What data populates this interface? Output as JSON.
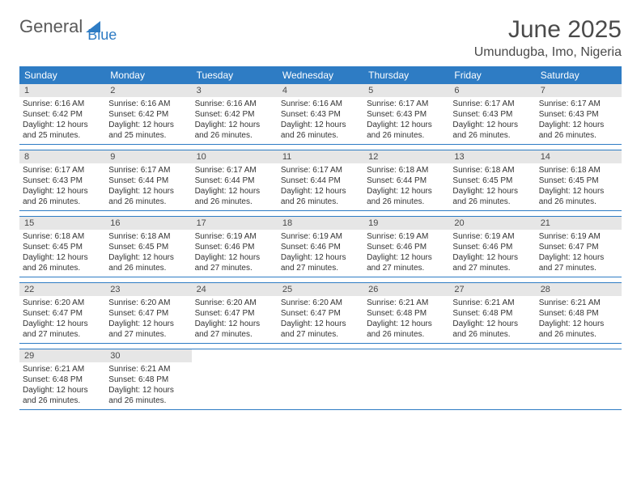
{
  "logo": {
    "t1": "General",
    "t2": "Blue"
  },
  "title": "June 2025",
  "location": "Umundugba, Imo, Nigeria",
  "weekdays": [
    "Sunday",
    "Monday",
    "Tuesday",
    "Wednesday",
    "Thursday",
    "Friday",
    "Saturday"
  ],
  "colors": {
    "header_bg": "#2e7cc4",
    "header_fg": "#ffffff",
    "daynum_bg": "#e6e6e6",
    "rule": "#2e7cc4",
    "text": "#333333",
    "logo_gray": "#5a5a5a",
    "logo_blue": "#2e7cc4"
  },
  "weeks": [
    [
      {
        "n": "1",
        "sr": "6:16 AM",
        "ss": "6:42 PM",
        "dl": "12 hours and 25 minutes."
      },
      {
        "n": "2",
        "sr": "6:16 AM",
        "ss": "6:42 PM",
        "dl": "12 hours and 25 minutes."
      },
      {
        "n": "3",
        "sr": "6:16 AM",
        "ss": "6:42 PM",
        "dl": "12 hours and 26 minutes."
      },
      {
        "n": "4",
        "sr": "6:16 AM",
        "ss": "6:43 PM",
        "dl": "12 hours and 26 minutes."
      },
      {
        "n": "5",
        "sr": "6:17 AM",
        "ss": "6:43 PM",
        "dl": "12 hours and 26 minutes."
      },
      {
        "n": "6",
        "sr": "6:17 AM",
        "ss": "6:43 PM",
        "dl": "12 hours and 26 minutes."
      },
      {
        "n": "7",
        "sr": "6:17 AM",
        "ss": "6:43 PM",
        "dl": "12 hours and 26 minutes."
      }
    ],
    [
      {
        "n": "8",
        "sr": "6:17 AM",
        "ss": "6:43 PM",
        "dl": "12 hours and 26 minutes."
      },
      {
        "n": "9",
        "sr": "6:17 AM",
        "ss": "6:44 PM",
        "dl": "12 hours and 26 minutes."
      },
      {
        "n": "10",
        "sr": "6:17 AM",
        "ss": "6:44 PM",
        "dl": "12 hours and 26 minutes."
      },
      {
        "n": "11",
        "sr": "6:17 AM",
        "ss": "6:44 PM",
        "dl": "12 hours and 26 minutes."
      },
      {
        "n": "12",
        "sr": "6:18 AM",
        "ss": "6:44 PM",
        "dl": "12 hours and 26 minutes."
      },
      {
        "n": "13",
        "sr": "6:18 AM",
        "ss": "6:45 PM",
        "dl": "12 hours and 26 minutes."
      },
      {
        "n": "14",
        "sr": "6:18 AM",
        "ss": "6:45 PM",
        "dl": "12 hours and 26 minutes."
      }
    ],
    [
      {
        "n": "15",
        "sr": "6:18 AM",
        "ss": "6:45 PM",
        "dl": "12 hours and 26 minutes."
      },
      {
        "n": "16",
        "sr": "6:18 AM",
        "ss": "6:45 PM",
        "dl": "12 hours and 26 minutes."
      },
      {
        "n": "17",
        "sr": "6:19 AM",
        "ss": "6:46 PM",
        "dl": "12 hours and 27 minutes."
      },
      {
        "n": "18",
        "sr": "6:19 AM",
        "ss": "6:46 PM",
        "dl": "12 hours and 27 minutes."
      },
      {
        "n": "19",
        "sr": "6:19 AM",
        "ss": "6:46 PM",
        "dl": "12 hours and 27 minutes."
      },
      {
        "n": "20",
        "sr": "6:19 AM",
        "ss": "6:46 PM",
        "dl": "12 hours and 27 minutes."
      },
      {
        "n": "21",
        "sr": "6:19 AM",
        "ss": "6:47 PM",
        "dl": "12 hours and 27 minutes."
      }
    ],
    [
      {
        "n": "22",
        "sr": "6:20 AM",
        "ss": "6:47 PM",
        "dl": "12 hours and 27 minutes."
      },
      {
        "n": "23",
        "sr": "6:20 AM",
        "ss": "6:47 PM",
        "dl": "12 hours and 27 minutes."
      },
      {
        "n": "24",
        "sr": "6:20 AM",
        "ss": "6:47 PM",
        "dl": "12 hours and 27 minutes."
      },
      {
        "n": "25",
        "sr": "6:20 AM",
        "ss": "6:47 PM",
        "dl": "12 hours and 27 minutes."
      },
      {
        "n": "26",
        "sr": "6:21 AM",
        "ss": "6:48 PM",
        "dl": "12 hours and 26 minutes."
      },
      {
        "n": "27",
        "sr": "6:21 AM",
        "ss": "6:48 PM",
        "dl": "12 hours and 26 minutes."
      },
      {
        "n": "28",
        "sr": "6:21 AM",
        "ss": "6:48 PM",
        "dl": "12 hours and 26 minutes."
      }
    ],
    [
      {
        "n": "29",
        "sr": "6:21 AM",
        "ss": "6:48 PM",
        "dl": "12 hours and 26 minutes."
      },
      {
        "n": "30",
        "sr": "6:21 AM",
        "ss": "6:48 PM",
        "dl": "12 hours and 26 minutes."
      },
      null,
      null,
      null,
      null,
      null
    ]
  ],
  "labels": {
    "sunrise": "Sunrise: ",
    "sunset": "Sunset: ",
    "daylight": "Daylight: "
  }
}
